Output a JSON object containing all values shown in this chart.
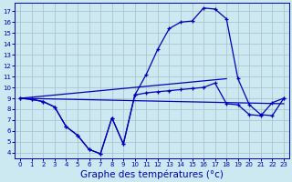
{
  "background_color": "#cce8f0",
  "grid_color": "#aabbcc",
  "line_color": "#0000bb",
  "xlabel": "Graphe des températures (°c)",
  "xlabel_fontsize": 7.5,
  "ylim": [
    3.5,
    17.8
  ],
  "xlim": [
    -0.5,
    23.5
  ],
  "yticks": [
    4,
    5,
    6,
    7,
    8,
    9,
    10,
    11,
    12,
    13,
    14,
    15,
    16,
    17
  ],
  "xticks": [
    0,
    1,
    2,
    3,
    4,
    5,
    6,
    7,
    8,
    9,
    10,
    11,
    12,
    13,
    14,
    15,
    16,
    17,
    18,
    19,
    20,
    21,
    22,
    23
  ],
  "curve1_x": [
    0,
    1,
    2,
    3,
    4,
    5,
    6,
    7,
    8,
    9,
    10,
    11,
    12,
    13,
    14,
    15,
    16,
    17,
    18,
    19,
    20,
    21,
    22,
    23
  ],
  "curve1_y": [
    9.0,
    8.9,
    8.7,
    8.2,
    6.4,
    5.6,
    4.3,
    3.9,
    7.2,
    4.8,
    9.3,
    11.2,
    13.5,
    15.4,
    16.0,
    16.1,
    17.3,
    17.2,
    16.3,
    10.8,
    8.4,
    7.5,
    7.4,
    9.0
  ],
  "curve2_x": [
    0,
    1,
    2,
    3,
    4,
    5,
    6,
    7,
    8,
    9,
    10,
    11,
    12,
    13,
    14,
    15,
    16,
    17,
    18,
    19,
    20,
    21,
    22,
    23
  ],
  "curve2_y": [
    9.0,
    8.9,
    8.7,
    8.2,
    6.4,
    5.6,
    4.3,
    3.9,
    7.2,
    4.8,
    9.3,
    9.5,
    9.6,
    9.7,
    9.8,
    9.9,
    10.0,
    10.4,
    8.5,
    8.4,
    7.5,
    7.4,
    8.6,
    9.0
  ],
  "flat_line_x": [
    0,
    23
  ],
  "flat_line_y": [
    9.0,
    8.5
  ],
  "diag_line_x": [
    0,
    18
  ],
  "diag_line_y": [
    9.0,
    10.8
  ]
}
